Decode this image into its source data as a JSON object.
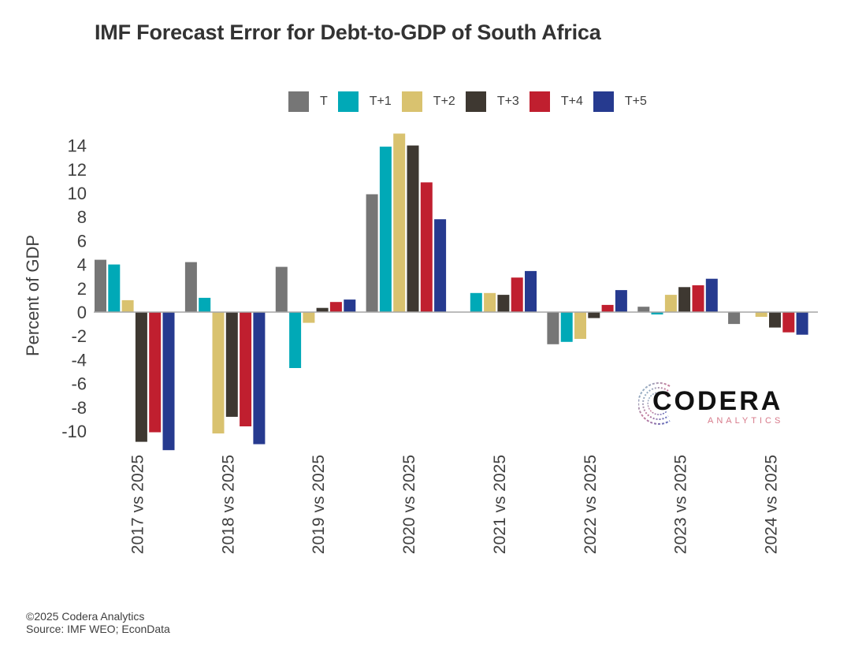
{
  "chart_data": {
    "type": "bar",
    "title": "IMF Forecast Error for Debt-to-GDP of South Africa",
    "xlabel": "",
    "ylabel": "Percent of GDP",
    "ylim": [
      -11.6,
      15.2
    ],
    "yticks": [
      14,
      12,
      10,
      8,
      6,
      4,
      2,
      0,
      -2,
      -4,
      -6,
      -8,
      -10
    ],
    "grid": false,
    "legend_position": "top-center",
    "categories": [
      "2017 vs 2025",
      "2018 vs 2025",
      "2019 vs 2025",
      "2020 vs 2025",
      "2021 vs 2025",
      "2022 vs 2025",
      "2023 vs 2025",
      "2024 vs 2025"
    ],
    "series": [
      {
        "name": "T",
        "color": "#767676",
        "values": [
          4.4,
          4.2,
          3.8,
          9.9,
          0.0,
          -2.7,
          0.45,
          -1.0
        ]
      },
      {
        "name": "T+1",
        "color": "#00a9b7",
        "values": [
          4.0,
          1.2,
          -4.7,
          13.9,
          1.6,
          -2.5,
          -0.2,
          0.0
        ]
      },
      {
        "name": "T+2",
        "color": "#d9c26f",
        "values": [
          1.0,
          -10.2,
          -0.9,
          15.0,
          1.6,
          -2.25,
          1.45,
          -0.4
        ]
      },
      {
        "name": "T+3",
        "color": "#3e3831",
        "values": [
          -10.9,
          -8.8,
          0.35,
          14.0,
          1.45,
          -0.5,
          2.1,
          -1.3
        ]
      },
      {
        "name": "T+4",
        "color": "#c01f2f",
        "values": [
          -10.1,
          -9.6,
          0.85,
          10.9,
          2.9,
          0.6,
          2.25,
          -1.7
        ]
      },
      {
        "name": "T+5",
        "color": "#263a8f",
        "values": [
          -11.6,
          -11.1,
          1.05,
          7.8,
          3.45,
          1.85,
          2.8,
          -1.9
        ]
      }
    ]
  },
  "logo": {
    "word": "CODERA",
    "sub": "ANALYTICS"
  },
  "footer": {
    "copyright": "©2025 Codera Analytics",
    "source": "Source: IMF WEO; EconData"
  },
  "colors": {
    "axis": "#a6a6a6",
    "text": "#404040"
  }
}
